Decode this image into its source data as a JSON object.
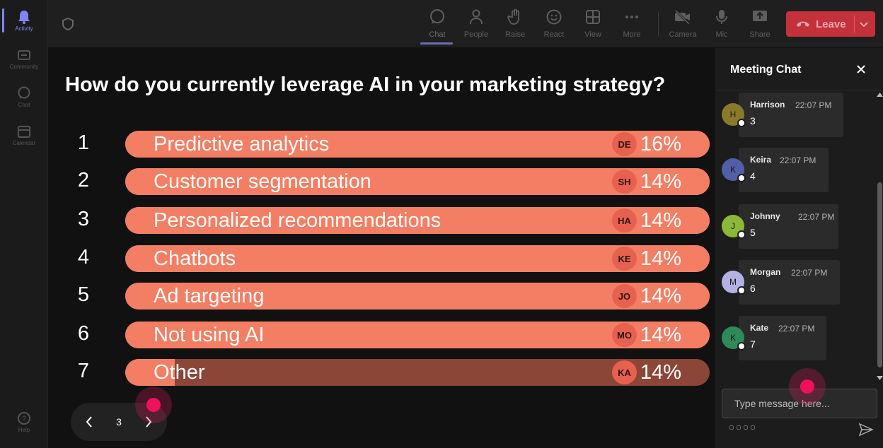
{
  "rail": {
    "items": [
      {
        "label": "Activity",
        "icon": "bell-icon",
        "active": true
      },
      {
        "label": "Community",
        "icon": "community-icon",
        "active": false
      },
      {
        "label": "Chat",
        "icon": "chat-icon",
        "active": false
      },
      {
        "label": "Calendar",
        "icon": "calendar-icon",
        "active": false
      }
    ],
    "help": "Help"
  },
  "toolbar": {
    "chat": "Chat",
    "people": "People",
    "raise": "Raise",
    "react": "React",
    "view": "View",
    "more": "More",
    "camera": "Camera",
    "mic": "Mic",
    "share": "Share",
    "leave": "Leave"
  },
  "poll": {
    "question": "How do you currently leverage AI in your marketing strategy?",
    "options": [
      {
        "num": "1",
        "label": "Predictive analytics",
        "badge": "DE",
        "pct": "16%",
        "fill": 1.0
      },
      {
        "num": "2",
        "label": "Customer segmentation",
        "badge": "SH",
        "pct": "14%",
        "fill": 1.0
      },
      {
        "num": "3",
        "label": "Personalized recommendations",
        "badge": "HA",
        "pct": "14%",
        "fill": 1.0
      },
      {
        "num": "4",
        "label": "Chatbots",
        "badge": "KE",
        "pct": "14%",
        "fill": 1.0
      },
      {
        "num": "5",
        "label": "Ad targeting",
        "badge": "JO",
        "pct": "14%",
        "fill": 1.0
      },
      {
        "num": "6",
        "label": "Not using AI",
        "badge": "MO",
        "pct": "14%",
        "fill": 1.0
      },
      {
        "num": "7",
        "label": "Other",
        "badge": "KA",
        "pct": "14%",
        "fill": 0.085
      }
    ]
  },
  "pager": {
    "page": "3"
  },
  "chat": {
    "title": "Meeting Chat",
    "messages": [
      {
        "initial": "H",
        "name": "Harrison",
        "time": "22:07 PM",
        "text": "3",
        "color": "#8a7a2a"
      },
      {
        "initial": "K",
        "name": "Keira",
        "time": "22:07 PM",
        "text": "4",
        "color": "#4f5fa8"
      },
      {
        "initial": "J",
        "name": "Johnny",
        "time": "22:07 PM",
        "text": "5",
        "color": "#8cb83a"
      },
      {
        "initial": "M",
        "name": "Morgan",
        "time": "22:07 PM",
        "text": "6",
        "color": "#b3b3e3"
      },
      {
        "initial": "K",
        "name": "Kate",
        "time": "22:07 PM",
        "text": "7",
        "color": "#2f8a5a"
      }
    ],
    "placeholder": "Type message here..."
  }
}
